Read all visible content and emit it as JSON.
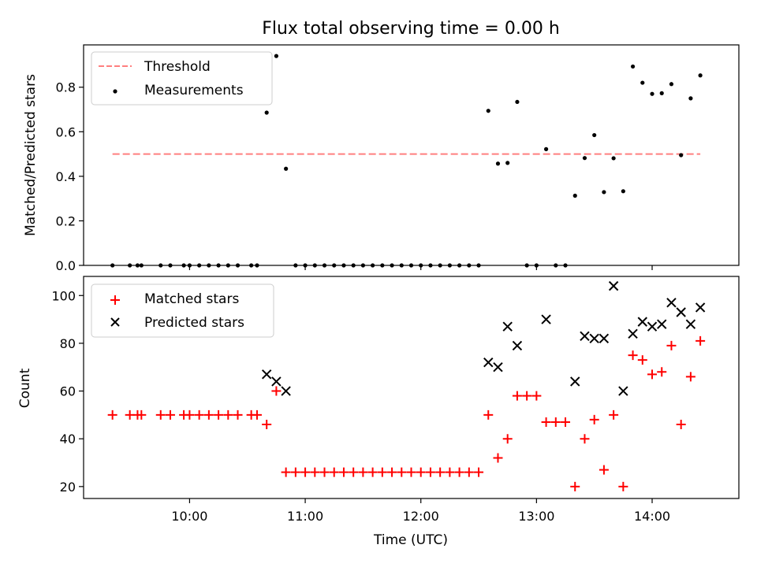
{
  "chart_data": [
    {
      "type": "scatter",
      "title": "Flux total observing time = 0.00 h",
      "ylabel": "Matched/Predicted stars",
      "xlabel": "",
      "ylim": [
        0,
        0.99
      ],
      "yticks": [
        0.0,
        0.2,
        0.4,
        0.6,
        0.8
      ],
      "ytick_labels": [
        "0.0",
        "0.2",
        "0.4",
        "0.6",
        "0.8"
      ],
      "legend_position": "top-left",
      "threshold": {
        "name": "Threshold",
        "value": 0.5,
        "x_start": "09:20",
        "x_end": "14:25",
        "color": "#ff7f7f"
      },
      "series": [
        {
          "name": "Measurements",
          "color": "#000000",
          "marker": "dot",
          "points": [
            [
              "09:20",
              0.0
            ],
            [
              "09:29",
              0.0
            ],
            [
              "09:33",
              0.0
            ],
            [
              "09:35",
              0.0
            ],
            [
              "09:45",
              0.0
            ],
            [
              "09:50",
              0.0
            ],
            [
              "09:57",
              0.0
            ],
            [
              "10:00",
              0.0
            ],
            [
              "10:05",
              0.0
            ],
            [
              "10:10",
              0.0
            ],
            [
              "10:15",
              0.0
            ],
            [
              "10:20",
              0.0
            ],
            [
              "10:25",
              0.0
            ],
            [
              "10:32",
              0.0
            ],
            [
              "10:35",
              0.0
            ],
            [
              "10:40",
              0.686
            ],
            [
              "10:45",
              0.94
            ],
            [
              "10:50",
              0.434
            ],
            [
              "10:55",
              0.0
            ],
            [
              "11:00",
              0.0
            ],
            [
              "11:05",
              0.0
            ],
            [
              "11:10",
              0.0
            ],
            [
              "11:15",
              0.0
            ],
            [
              "11:20",
              0.0
            ],
            [
              "11:25",
              0.0
            ],
            [
              "11:30",
              0.0
            ],
            [
              "11:35",
              0.0
            ],
            [
              "11:40",
              0.0
            ],
            [
              "11:45",
              0.0
            ],
            [
              "11:50",
              0.0
            ],
            [
              "11:55",
              0.0
            ],
            [
              "12:00",
              0.0
            ],
            [
              "12:05",
              0.0
            ],
            [
              "12:10",
              0.0
            ],
            [
              "12:15",
              0.0
            ],
            [
              "12:20",
              0.0
            ],
            [
              "12:25",
              0.0
            ],
            [
              "12:30",
              0.0
            ],
            [
              "12:35",
              0.694
            ],
            [
              "12:40",
              0.457
            ],
            [
              "12:45",
              0.46
            ],
            [
              "12:50",
              0.734
            ],
            [
              "12:55",
              0.0
            ],
            [
              "13:00",
              0.0
            ],
            [
              "13:05",
              0.522
            ],
            [
              "13:10",
              0.0
            ],
            [
              "13:15",
              0.0
            ],
            [
              "13:20",
              0.313
            ],
            [
              "13:25",
              0.482
            ],
            [
              "13:30",
              0.585
            ],
            [
              "13:35",
              0.329
            ],
            [
              "13:40",
              0.481
            ],
            [
              "13:45",
              0.333
            ],
            [
              "13:50",
              0.893
            ],
            [
              "13:55",
              0.82
            ],
            [
              "14:00",
              0.77
            ],
            [
              "14:05",
              0.773
            ],
            [
              "14:10",
              0.814
            ],
            [
              "14:15",
              0.495
            ],
            [
              "14:20",
              0.75
            ],
            [
              "14:25",
              0.853
            ]
          ]
        }
      ]
    },
    {
      "type": "scatter",
      "title": "",
      "ylabel": "Count",
      "xlabel": "Time (UTC)",
      "xlim": [
        "09:05",
        "14:45"
      ],
      "xticks": [
        "10:00",
        "11:00",
        "12:00",
        "13:00",
        "14:00"
      ],
      "ylim": [
        15,
        108
      ],
      "yticks": [
        20,
        40,
        60,
        80,
        100
      ],
      "ytick_labels": [
        "20",
        "40",
        "60",
        "80",
        "100"
      ],
      "legend_position": "top-left",
      "series": [
        {
          "name": "Matched stars",
          "color": "#ff0000",
          "marker": "plus",
          "points": [
            [
              "09:20",
              50
            ],
            [
              "09:29",
              50
            ],
            [
              "09:33",
              50
            ],
            [
              "09:35",
              50
            ],
            [
              "09:45",
              50
            ],
            [
              "09:50",
              50
            ],
            [
              "09:57",
              50
            ],
            [
              "10:00",
              50
            ],
            [
              "10:05",
              50
            ],
            [
              "10:10",
              50
            ],
            [
              "10:15",
              50
            ],
            [
              "10:20",
              50
            ],
            [
              "10:25",
              50
            ],
            [
              "10:32",
              50
            ],
            [
              "10:35",
              50
            ],
            [
              "10:40",
              46
            ],
            [
              "10:45",
              60
            ],
            [
              "10:50",
              26
            ],
            [
              "10:55",
              26
            ],
            [
              "11:00",
              26
            ],
            [
              "11:05",
              26
            ],
            [
              "11:10",
              26
            ],
            [
              "11:15",
              26
            ],
            [
              "11:20",
              26
            ],
            [
              "11:25",
              26
            ],
            [
              "11:30",
              26
            ],
            [
              "11:35",
              26
            ],
            [
              "11:40",
              26
            ],
            [
              "11:45",
              26
            ],
            [
              "11:50",
              26
            ],
            [
              "11:55",
              26
            ],
            [
              "12:00",
              26
            ],
            [
              "12:05",
              26
            ],
            [
              "12:10",
              26
            ],
            [
              "12:15",
              26
            ],
            [
              "12:20",
              26
            ],
            [
              "12:25",
              26
            ],
            [
              "12:30",
              26
            ],
            [
              "12:35",
              50
            ],
            [
              "12:40",
              32
            ],
            [
              "12:45",
              40
            ],
            [
              "12:50",
              58
            ],
            [
              "12:55",
              58
            ],
            [
              "13:00",
              58
            ],
            [
              "13:05",
              47
            ],
            [
              "13:10",
              47
            ],
            [
              "13:15",
              47
            ],
            [
              "13:20",
              20
            ],
            [
              "13:25",
              40
            ],
            [
              "13:30",
              48
            ],
            [
              "13:35",
              27
            ],
            [
              "13:40",
              50
            ],
            [
              "13:45",
              20
            ],
            [
              "13:50",
              75
            ],
            [
              "13:55",
              73
            ],
            [
              "14:00",
              67
            ],
            [
              "14:05",
              68
            ],
            [
              "14:10",
              79
            ],
            [
              "14:15",
              46
            ],
            [
              "14:20",
              66
            ],
            [
              "14:25",
              81
            ]
          ]
        },
        {
          "name": "Predicted stars",
          "color": "#000000",
          "marker": "x",
          "points": [
            [
              "10:40",
              67
            ],
            [
              "10:45",
              64
            ],
            [
              "10:50",
              60
            ],
            [
              "12:35",
              72
            ],
            [
              "12:40",
              70
            ],
            [
              "12:45",
              87
            ],
            [
              "12:50",
              79
            ],
            [
              "13:05",
              90
            ],
            [
              "13:20",
              64
            ],
            [
              "13:25",
              83
            ],
            [
              "13:30",
              82
            ],
            [
              "13:35",
              82
            ],
            [
              "13:40",
              104
            ],
            [
              "13:45",
              60
            ],
            [
              "13:50",
              84
            ],
            [
              "13:55",
              89
            ],
            [
              "14:00",
              87
            ],
            [
              "14:05",
              88
            ],
            [
              "14:10",
              97
            ],
            [
              "14:15",
              93
            ],
            [
              "14:20",
              88
            ],
            [
              "14:25",
              95
            ]
          ]
        }
      ]
    }
  ]
}
